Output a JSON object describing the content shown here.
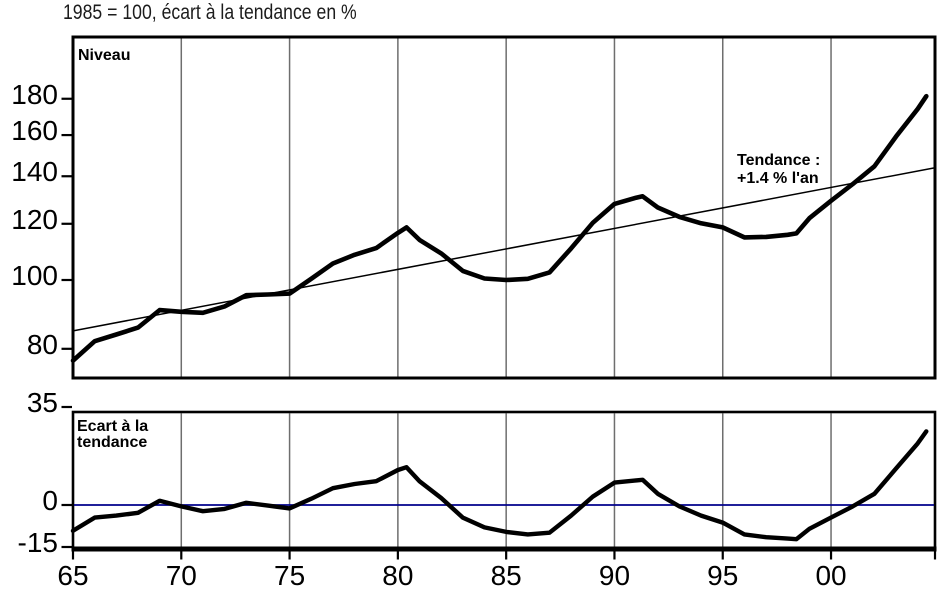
{
  "title": "1985 = 100, écart à la tendance en %",
  "colors": {
    "curve": "#000000",
    "trend": "#000000",
    "grid": "#6e6e6e",
    "frame": "#000000",
    "zero_line": "#00008b",
    "text": "#000000",
    "background": "#ffffff"
  },
  "x_axis": {
    "tick_years": [
      1965,
      1970,
      1975,
      1980,
      1985,
      1990,
      1995,
      2000
    ],
    "tick_labels": [
      "65",
      "70",
      "75",
      "80",
      "85",
      "90",
      "95",
      "00"
    ],
    "right_edge_unlabeled_tick": true
  },
  "chart_data": [
    {
      "type": "line",
      "panel": "top",
      "panel_label": "Niveau",
      "yscale": "log",
      "xlim": [
        1965,
        2004.8
      ],
      "ylim": [
        75,
        220
      ],
      "y_ticks": [
        180,
        160,
        140,
        120,
        100,
        80
      ],
      "grid_x": [
        1970,
        1975,
        1980,
        1985,
        1990,
        1995,
        2000
      ],
      "grid": "vertical-only",
      "annotation": {
        "lines": [
          "Tendance :",
          "+1.4 % l'an"
        ]
      },
      "series": [
        {
          "name": "Niveau",
          "x": [
            1965,
            1966,
            1967,
            1968,
            1969,
            1970,
            1971,
            1972,
            1973,
            1974,
            1975,
            1976,
            1977,
            1978,
            1979,
            1980,
            1980.4,
            1981,
            1982,
            1983,
            1984,
            1985,
            1986,
            1987,
            1988,
            1989,
            1990,
            1991,
            1991.3,
            1992,
            1993,
            1994,
            1995,
            1996,
            1997,
            1998,
            1998.4,
            1999,
            2000,
            2001,
            2002,
            2003,
            2004,
            2004.4
          ],
          "values": [
            77.0,
            82.0,
            83.8,
            85.7,
            90.7,
            90.2,
            89.9,
            91.8,
            95.2,
            95.4,
            95.7,
            100.4,
            105.5,
            108.5,
            110.9,
            116.5,
            118.6,
            113.9,
            109.0,
            103.0,
            100.5,
            100.0,
            100.4,
            102.5,
            110.8,
            120.4,
            128.0,
            130.6,
            131.2,
            126.5,
            122.7,
            120.2,
            118.6,
            114.8,
            115.0,
            115.8,
            116.3,
            122.2,
            129.3,
            136.5,
            144.6,
            159.2,
            174.2,
            181.5
          ]
        },
        {
          "name": "Tendance",
          "trend_rate_pct_per_year": 1.4,
          "x": [
            1965,
            2004.8
          ],
          "values": [
            84.8,
            143.9
          ]
        }
      ]
    },
    {
      "type": "line",
      "panel": "bottom",
      "panel_label_lines": [
        "Ecart à la",
        "tendance"
      ],
      "yscale": "linear",
      "xlim": [
        1965,
        2004.8
      ],
      "ylim": [
        -16,
        33
      ],
      "y_ticks": [
        35,
        0,
        -15
      ],
      "zero_line_value": 0,
      "grid_x": [
        1970,
        1975,
        1980,
        1985,
        1990,
        1995,
        2000
      ],
      "series": [
        {
          "name": "Ecart à la tendance (%)",
          "x": [
            1965,
            1966,
            1967,
            1968,
            1969,
            1970,
            1971,
            1972,
            1973,
            1974,
            1975,
            1976,
            1977,
            1978,
            1979,
            1980,
            1980.4,
            1981,
            1982,
            1983,
            1984,
            1985,
            1986,
            1987,
            1988,
            1989,
            1990,
            1991,
            1991.3,
            1992,
            1993,
            1994,
            1995,
            1996,
            1997,
            1998,
            1998.4,
            1999,
            2000,
            2001,
            2002,
            2003,
            2004,
            2004.4
          ],
          "values": [
            -9.2,
            -4.5,
            -3.8,
            -2.8,
            1.5,
            -0.5,
            -2.2,
            -1.4,
            0.8,
            -0.2,
            -1.2,
            2.2,
            6.0,
            7.5,
            8.5,
            12.5,
            13.5,
            8.5,
            2.5,
            -4.5,
            -8.0,
            -9.6,
            -10.5,
            -9.9,
            -3.8,
            3.0,
            8.0,
            8.8,
            9.0,
            4.0,
            -0.5,
            -3.8,
            -6.3,
            -10.5,
            -11.5,
            -12.0,
            -12.2,
            -8.5,
            -4.5,
            -0.5,
            4.0,
            13.0,
            22.0,
            26.3
          ]
        }
      ]
    }
  ]
}
